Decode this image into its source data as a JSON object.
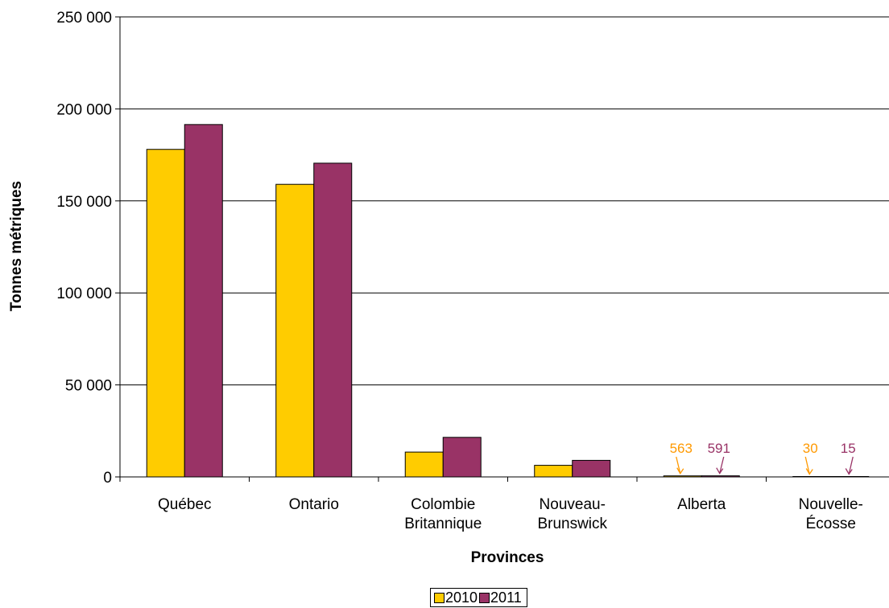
{
  "chart_data": {
    "type": "bar",
    "title": "",
    "xlabel": "Provinces",
    "ylabel": "Tonnes métriques",
    "ylim": [
      0,
      250000
    ],
    "yticks": [
      0,
      50000,
      100000,
      150000,
      200000,
      250000
    ],
    "ytick_labels": [
      "0",
      "50 000",
      "100 000",
      "150 000",
      "200 000",
      "250 000"
    ],
    "categories": [
      [
        "Québec"
      ],
      [
        "Ontario"
      ],
      [
        "Colombie",
        "Britannique"
      ],
      [
        "Nouveau-",
        "Brunswick"
      ],
      [
        "Alberta"
      ],
      [
        "Nouvelle-",
        "Écosse"
      ]
    ],
    "series": [
      {
        "name": "2010",
        "color": "#FFCC00",
        "values": [
          178000,
          159000,
          13500,
          6300,
          563,
          30
        ]
      },
      {
        "name": "2011",
        "color": "#993366",
        "values": [
          191500,
          170500,
          21500,
          9000,
          591,
          15
        ]
      }
    ],
    "annotations": [
      {
        "text": "563",
        "category": 4,
        "series": 0,
        "color": "#FF9900"
      },
      {
        "text": "591",
        "category": 4,
        "series": 1,
        "color": "#993366"
      },
      {
        "text": "30",
        "category": 5,
        "series": 0,
        "color": "#FF9900"
      },
      {
        "text": "15",
        "category": 5,
        "series": 1,
        "color": "#993366"
      }
    ],
    "grid": true,
    "legend_position": "bottom"
  }
}
